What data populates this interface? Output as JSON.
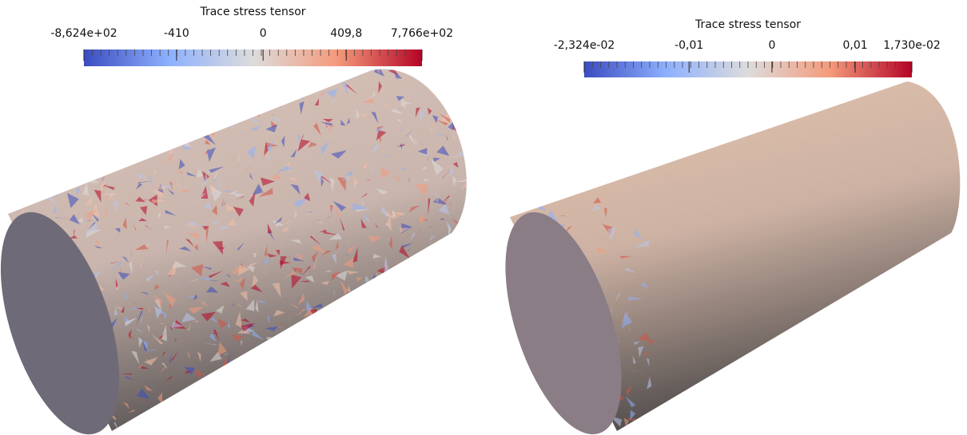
{
  "panels": [
    {
      "colorbar": {
        "title": "Trace stress tensor",
        "labels": [
          "-8,624e+02",
          "-410",
          "0",
          "409,8",
          "7,766e+02"
        ]
      }
    },
    {
      "colorbar": {
        "title": "Trace stress tensor",
        "labels": [
          "-2,324e-02",
          "-0,01",
          "0",
          "0,01",
          "1,730e-02"
        ]
      }
    }
  ]
}
